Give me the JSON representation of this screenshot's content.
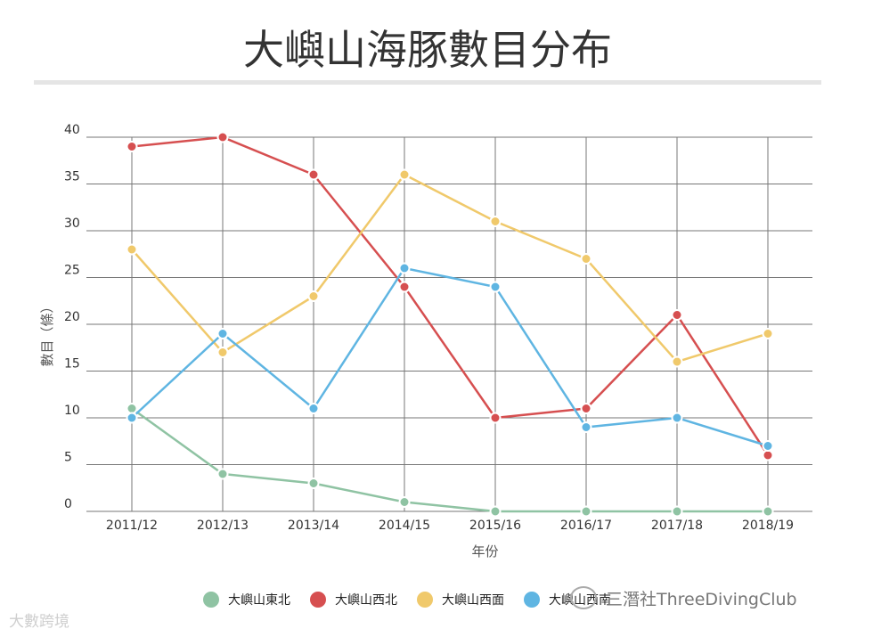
{
  "title": "大嶼山海豚數目分布",
  "chart_data": {
    "type": "line",
    "categories": [
      "2011/12",
      "2012/13",
      "2013/14",
      "2014/15",
      "2015/16",
      "2016/17",
      "2017/18",
      "2018/19"
    ],
    "series": [
      {
        "name": "大嶼山東北",
        "color": "#8fc3a3",
        "values": [
          11,
          4,
          3,
          1,
          0,
          0,
          0,
          0
        ]
      },
      {
        "name": "大嶼山西北",
        "color": "#d64f50",
        "values": [
          39,
          40,
          36,
          24,
          10,
          11,
          21,
          6
        ]
      },
      {
        "name": "大嶼山西面",
        "color": "#f0c96b",
        "values": [
          28,
          17,
          23,
          36,
          31,
          27,
          16,
          19
        ]
      },
      {
        "name": "大嶼山西南",
        "color": "#5fb5e2",
        "values": [
          10,
          19,
          11,
          26,
          24,
          9,
          10,
          7
        ]
      }
    ],
    "xlabel": "年份",
    "ylabel": "數目（條）",
    "ylim": [
      0,
      40
    ],
    "yticks": [
      0,
      5,
      10,
      15,
      20,
      25,
      30,
      35,
      40
    ],
    "grid": true,
    "legend_position": "bottom"
  },
  "watermarks": {
    "left": "大數跨境",
    "right": "三潛社ThreeDivingClub"
  }
}
